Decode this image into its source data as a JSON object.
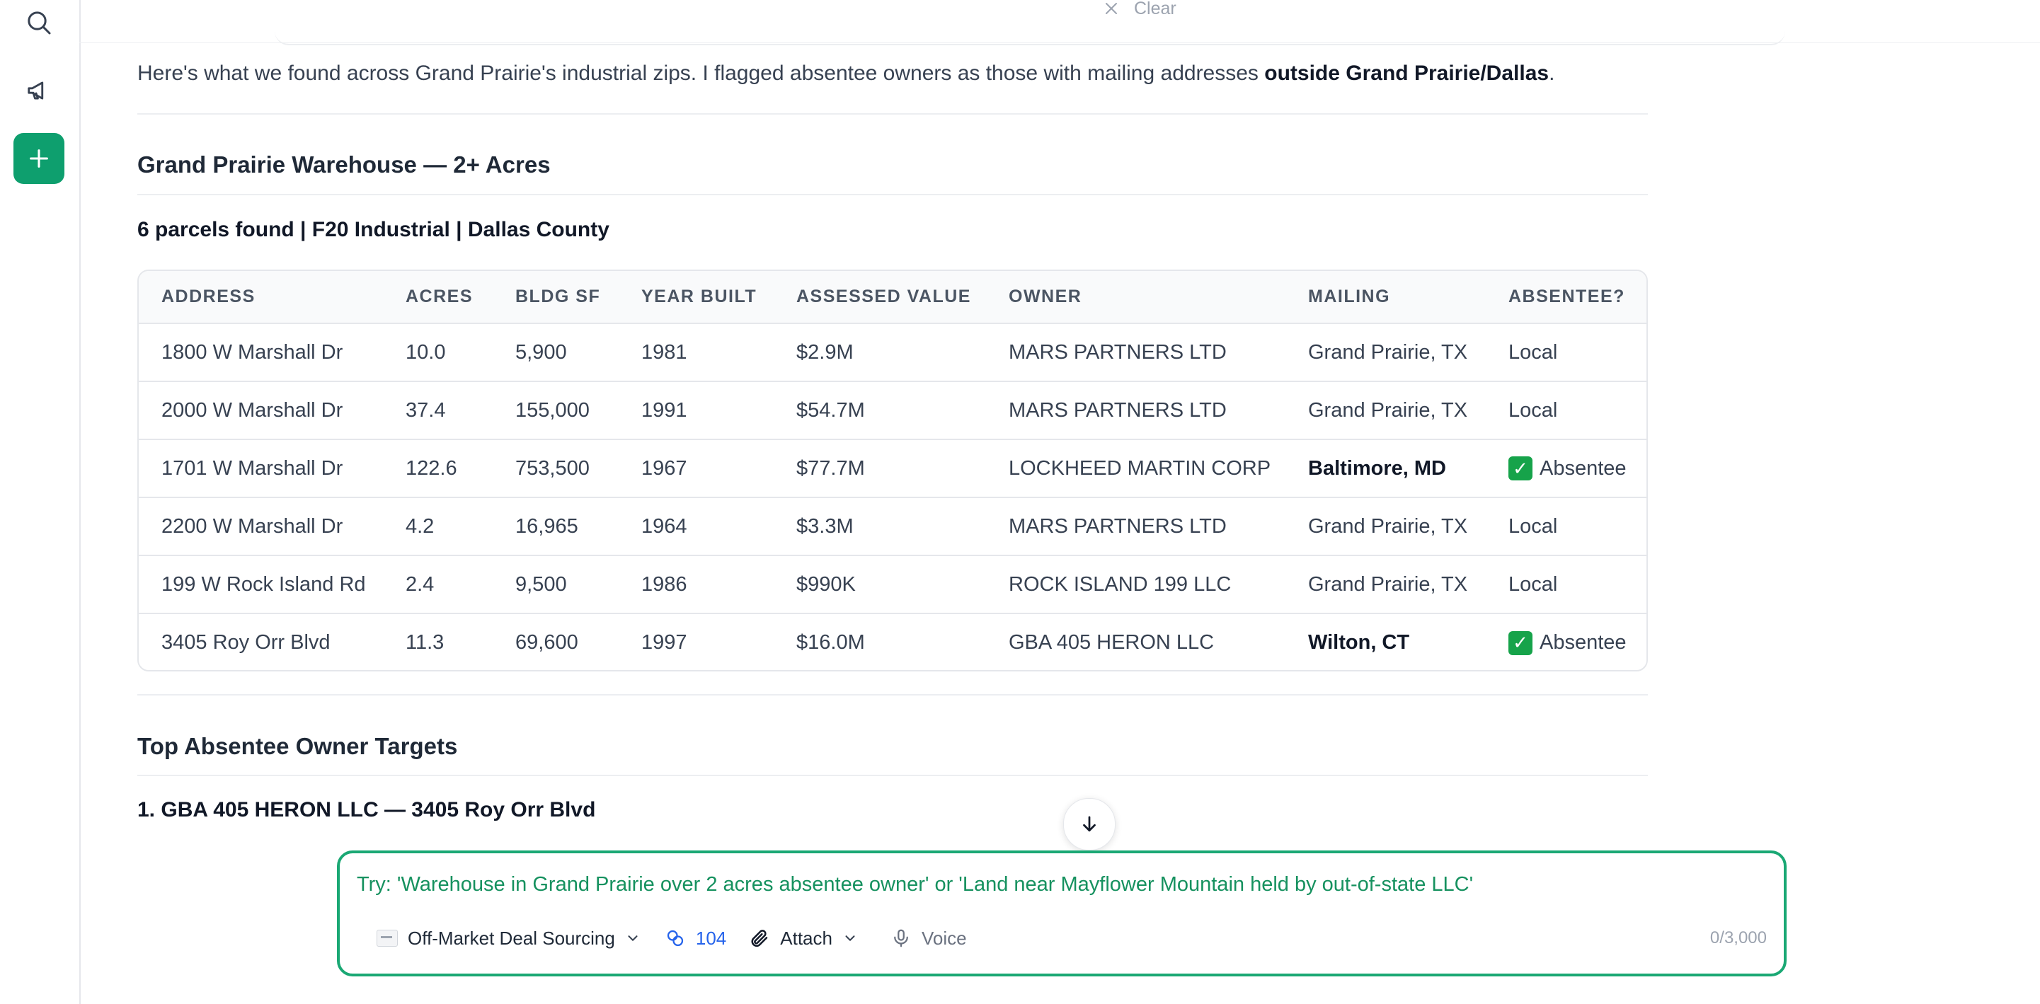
{
  "top": {
    "clear_label": "Clear"
  },
  "intro": {
    "text_before": "Here's what we found across Grand Prairie's industrial zips. I flagged absentee owners as those with mailing addresses ",
    "text_bold": "outside Grand Prairie/Dallas",
    "text_after": "."
  },
  "section1": {
    "title": "Grand Prairie Warehouse — 2+ Acres",
    "subtitle": "6 parcels found | F20 Industrial | Dallas County"
  },
  "table": {
    "headers": [
      "ADDRESS",
      "ACRES",
      "BLDG SF",
      "YEAR BUILT",
      "ASSESSED VALUE",
      "OWNER",
      "MAILING",
      "ABSENTEE?"
    ],
    "rows": [
      {
        "address": "1800 W Marshall Dr",
        "acres": "10.0",
        "bldg_sf": "5,900",
        "year": "1981",
        "value": "$2.9M",
        "owner": "MARS PARTNERS LTD",
        "mailing": "Grand Prairie, TX",
        "mailing_bold": false,
        "absentee": "Local",
        "absentee_check": false
      },
      {
        "address": "2000 W Marshall Dr",
        "acres": "37.4",
        "bldg_sf": "155,000",
        "year": "1991",
        "value": "$54.7M",
        "owner": "MARS PARTNERS LTD",
        "mailing": "Grand Prairie, TX",
        "mailing_bold": false,
        "absentee": "Local",
        "absentee_check": false
      },
      {
        "address": "1701 W Marshall Dr",
        "acres": "122.6",
        "bldg_sf": "753,500",
        "year": "1967",
        "value": "$77.7M",
        "owner": "LOCKHEED MARTIN CORP",
        "mailing": "Baltimore, MD",
        "mailing_bold": true,
        "absentee": "Absentee",
        "absentee_check": true
      },
      {
        "address": "2200 W Marshall Dr",
        "acres": "4.2",
        "bldg_sf": "16,965",
        "year": "1964",
        "value": "$3.3M",
        "owner": "MARS PARTNERS LTD",
        "mailing": "Grand Prairie, TX",
        "mailing_bold": false,
        "absentee": "Local",
        "absentee_check": false
      },
      {
        "address": "199 W Rock Island Rd",
        "acres": "2.4",
        "bldg_sf": "9,500",
        "year": "1986",
        "value": "$990K",
        "owner": "ROCK ISLAND 199 LLC",
        "mailing": "Grand Prairie, TX",
        "mailing_bold": false,
        "absentee": "Local",
        "absentee_check": false
      },
      {
        "address": "3405 Roy Orr Blvd",
        "acres": "11.3",
        "bldg_sf": "69,600",
        "year": "1997",
        "value": "$16.0M",
        "owner": "GBA 405 HERON LLC",
        "mailing": "Wilton, CT",
        "mailing_bold": true,
        "absentee": "Absentee",
        "absentee_check": true
      }
    ]
  },
  "section2": {
    "title": "Top Absentee Owner Targets",
    "item1": "1. GBA 405 HERON LLC — 3405 Roy Orr Blvd"
  },
  "composer": {
    "placeholder": "Try: 'Warehouse in Grand Prairie over 2 acres absentee owner' or 'Land near Mayflower Mountain held by out-of-state LLC'",
    "value": "",
    "mode_label": "Off-Market Deal Sourcing",
    "credits": "104",
    "attach_label": "Attach",
    "voice_label": "Voice",
    "counter": "0/3,000"
  },
  "colors": {
    "accent": "#0e9f6e",
    "composer_border": "#1aa874",
    "credits": "#2563eb",
    "check": "#16a34a"
  },
  "icons": [
    "search-icon",
    "megaphone-icon",
    "plus-icon",
    "close-icon",
    "chevron-down-icon",
    "arrow-down-icon",
    "link-credits-icon",
    "paperclip-icon",
    "microphone-icon",
    "check-icon"
  ]
}
